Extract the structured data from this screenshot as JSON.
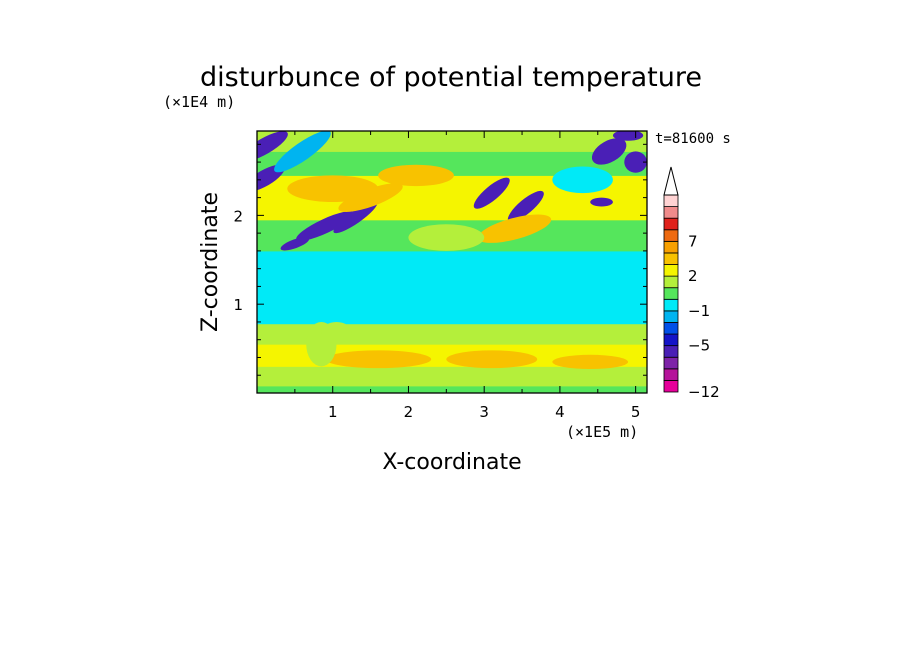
{
  "chart_data": {
    "type": "heatmap",
    "title": "disturbunce of potential temperature",
    "xlabel": "X-coordinate",
    "ylabel": "Z-coordinate",
    "x_unit": "(×1E5 m)",
    "y_unit": "(×1E4 m)",
    "time_label": "t=81600 s",
    "xlim": [
      0,
      5.15
    ],
    "ylim": [
      0,
      2.95
    ],
    "x_ticks": [
      1,
      2,
      3,
      4,
      5
    ],
    "y_ticks": [
      1,
      2
    ],
    "colorbar": {
      "levels": [
        -12,
        -11,
        -9,
        -7,
        -5,
        -3,
        -2,
        -1,
        0,
        1,
        2,
        3,
        5,
        7,
        9,
        11,
        13
      ],
      "labeled": [
        -12,
        -5,
        -1,
        2,
        7
      ],
      "colors": [
        "#e6009a",
        "#b5139a",
        "#7e23a8",
        "#4a1fb6",
        "#1414c8",
        "#0050e8",
        "#00b4f0",
        "#00eaf7",
        "#55e65c",
        "#b4ef3b",
        "#f5f500",
        "#f8c200",
        "#f8a000",
        "#ee6a10",
        "#e0221c",
        "#f08b8b",
        "#ffd3d3"
      ],
      "extend": "max"
    },
    "bands": [
      {
        "z": [
          0.0,
          0.08
        ],
        "level": 0.5
      },
      {
        "z": [
          0.08,
          0.3
        ],
        "level": 1.6
      },
      {
        "z": [
          0.3,
          0.55
        ],
        "level": 2.2
      },
      {
        "z": [
          0.55,
          0.78
        ],
        "level": 1.2
      },
      {
        "z": [
          0.78,
          1.6
        ],
        "level": -0.5
      },
      {
        "z": [
          1.6,
          1.95
        ],
        "level": 0.6
      },
      {
        "z": [
          1.95,
          2.45
        ],
        "level": 2.2
      },
      {
        "z": [
          2.45,
          2.72
        ],
        "level": 0.4
      },
      {
        "z": [
          2.72,
          2.95
        ],
        "level": 1.4
      }
    ],
    "features": [
      {
        "x": 0.1,
        "z": 2.78,
        "a": 0.35,
        "b": 0.09,
        "rot": -30,
        "level": -6
      },
      {
        "x": 0.1,
        "z": 2.42,
        "a": 0.3,
        "b": 0.09,
        "rot": -30,
        "level": -6
      },
      {
        "x": 0.6,
        "z": 2.72,
        "a": 0.45,
        "b": 0.1,
        "rot": -35,
        "level": -2
      },
      {
        "x": 0.9,
        "z": 1.88,
        "a": 0.42,
        "b": 0.08,
        "rot": -25,
        "level": -6
      },
      {
        "x": 1.3,
        "z": 1.98,
        "a": 0.35,
        "b": 0.07,
        "rot": -35,
        "level": -6
      },
      {
        "x": 0.5,
        "z": 1.68,
        "a": 0.2,
        "b": 0.05,
        "rot": -20,
        "level": -6
      },
      {
        "x": 1.0,
        "z": 2.3,
        "a": 0.6,
        "b": 0.15,
        "rot": 0,
        "level": 4
      },
      {
        "x": 1.5,
        "z": 2.2,
        "a": 0.45,
        "b": 0.1,
        "rot": -20,
        "level": 4
      },
      {
        "x": 2.1,
        "z": 2.45,
        "a": 0.5,
        "b": 0.12,
        "rot": 0,
        "level": 3
      },
      {
        "x": 3.1,
        "z": 2.25,
        "a": 0.3,
        "b": 0.08,
        "rot": -40,
        "level": -6
      },
      {
        "x": 3.55,
        "z": 2.1,
        "a": 0.3,
        "b": 0.08,
        "rot": -40,
        "level": -6
      },
      {
        "x": 3.4,
        "z": 1.85,
        "a": 0.5,
        "b": 0.12,
        "rot": -15,
        "level": 4
      },
      {
        "x": 4.55,
        "z": 2.15,
        "a": 0.15,
        "b": 0.05,
        "rot": 0,
        "level": -6
      },
      {
        "x": 4.65,
        "z": 2.72,
        "a": 0.25,
        "b": 0.12,
        "rot": -30,
        "level": -6
      },
      {
        "x": 5.0,
        "z": 2.6,
        "a": 0.15,
        "b": 0.12,
        "rot": 0,
        "level": -6
      },
      {
        "x": 4.3,
        "z": 2.4,
        "a": 0.4,
        "b": 0.15,
        "rot": 0,
        "level": -0.5
      },
      {
        "x": 4.9,
        "z": 2.9,
        "a": 0.2,
        "b": 0.06,
        "rot": 0,
        "level": -6
      },
      {
        "x": 1.6,
        "z": 0.38,
        "a": 0.7,
        "b": 0.1,
        "rot": 0,
        "level": 4
      },
      {
        "x": 3.1,
        "z": 0.38,
        "a": 0.6,
        "b": 0.1,
        "rot": 0,
        "level": 4
      },
      {
        "x": 4.4,
        "z": 0.35,
        "a": 0.5,
        "b": 0.08,
        "rot": 0,
        "level": 3
      },
      {
        "x": 0.85,
        "z": 0.55,
        "a": 0.2,
        "b": 0.25,
        "rot": 0,
        "level": 1.2
      },
      {
        "x": 1.05,
        "z": 0.68,
        "a": 0.2,
        "b": 0.12,
        "rot": 0,
        "level": 1.2
      },
      {
        "x": 2.5,
        "z": 1.75,
        "a": 0.5,
        "b": 0.15,
        "rot": 0,
        "level": 1.5
      },
      {
        "x": 2.3,
        "z": 0.9,
        "a": 0.35,
        "b": 0.12,
        "rot": 0,
        "level": -0.5
      }
    ]
  }
}
